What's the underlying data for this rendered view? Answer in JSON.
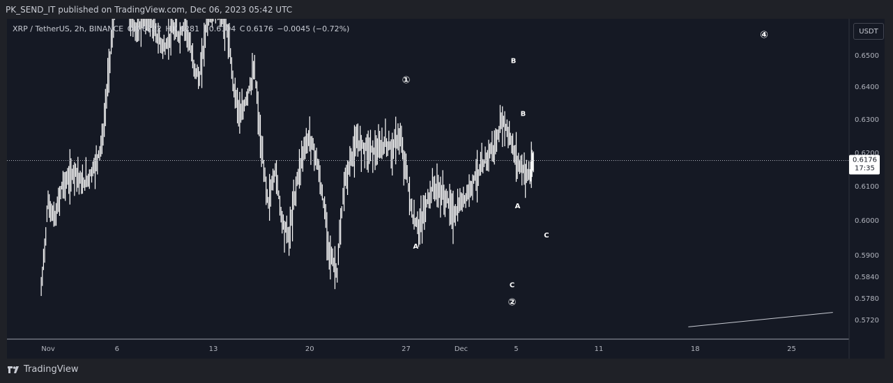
{
  "header": {
    "published_text": "PK_SEND_IT published on TradingView.com, Dec 06, 2023 05:42 UTC"
  },
  "symbol": {
    "name": "XRP / TetherUS, 2h, BINANCE",
    "open_label": "O",
    "open": "0.6222",
    "high_label": "H",
    "high": "0.6281",
    "low_label": "L",
    "low": "0.6104",
    "close_label": "C",
    "close": "0.6176",
    "change": "−0.0045 (−0.72%)"
  },
  "currency_button": "USDT",
  "price_marker": {
    "value": "0.6176",
    "countdown": "17:35"
  },
  "footer": {
    "brand": "TradingView"
  },
  "colors": {
    "background": "#151924",
    "candle": "#ffffff",
    "text": "#d1d4dc",
    "grid": "#2a2e39"
  },
  "chart_data": {
    "type": "line",
    "title": "XRP / TetherUS, 2h, BINANCE",
    "ylabel": "",
    "xlabel": "",
    "y_axis_ticks": [
      0.65,
      0.64,
      0.63,
      0.62,
      0.61,
      0.6,
      0.59,
      0.584,
      0.578,
      0.572
    ],
    "y_axis_tick_labels": [
      "0.6500",
      "0.6400",
      "0.6300",
      "0.6200",
      "0.6100",
      "0.6000",
      "0.5900",
      "0.5840",
      "0.5780",
      "0.5720"
    ],
    "x_axis_ticks": [
      {
        "day": 1,
        "label": "Nov"
      },
      {
        "day": 6,
        "label": "6"
      },
      {
        "day": 13,
        "label": "13"
      },
      {
        "day": 20,
        "label": "20"
      },
      {
        "day": 27,
        "label": "27"
      },
      {
        "day": 31,
        "label": "Dec"
      },
      {
        "day": 35,
        "label": "5"
      },
      {
        "day": 41,
        "label": "11"
      },
      {
        "day": 48,
        "label": "18"
      },
      {
        "day": 55,
        "label": "25"
      }
    ],
    "series": [
      {
        "x_day": [
          0.5,
          1.0,
          1.5,
          2.0,
          2.5,
          3.0,
          3.5,
          4.0,
          4.5,
          5.0,
          5.5,
          6.0,
          6.5,
          7.0,
          7.5,
          8.0,
          8.5,
          9.0,
          9.5,
          10.0,
          10.5,
          11.0,
          11.5,
          12.0,
          12.5,
          13.0,
          13.5,
          14.0,
          14.5,
          15.0,
          15.5,
          16.0,
          16.5,
          17.0,
          17.5,
          18.0,
          18.5,
          19.0,
          19.5,
          20.0,
          20.5,
          21.0,
          21.5,
          22.0,
          22.5,
          23.0,
          23.5,
          24.0,
          24.5,
          25.0,
          25.5,
          26.0,
          26.5,
          27.0,
          27.5,
          28.0,
          28.5,
          29.0,
          29.5,
          30.0,
          30.5,
          31.0,
          31.5,
          32.0,
          32.5,
          33.0,
          33.5,
          34.0,
          34.5,
          35.0,
          35.5,
          36.0,
          36.3
        ],
        "y": [
          0.58,
          0.605,
          0.6,
          0.61,
          0.612,
          0.615,
          0.61,
          0.613,
          0.617,
          0.625,
          0.65,
          0.67,
          0.675,
          0.66,
          0.658,
          0.662,
          0.66,
          0.655,
          0.652,
          0.658,
          0.656,
          0.66,
          0.648,
          0.642,
          0.66,
          0.664,
          0.662,
          0.658,
          0.64,
          0.63,
          0.638,
          0.645,
          0.62,
          0.605,
          0.615,
          0.6,
          0.595,
          0.61,
          0.62,
          0.625,
          0.618,
          0.605,
          0.59,
          0.585,
          0.61,
          0.618,
          0.623,
          0.622,
          0.621,
          0.62,
          0.623,
          0.621,
          0.625,
          0.615,
          0.6,
          0.598,
          0.605,
          0.61,
          0.608,
          0.606,
          0.601,
          0.605,
          0.608,
          0.613,
          0.615,
          0.62,
          0.622,
          0.63,
          0.625,
          0.618,
          0.615,
          0.613,
          0.6176
        ]
      }
    ],
    "current_price": 0.6176,
    "annotations": [
      {
        "label": "④",
        "day": 53.0,
        "y": 0.6555
      },
      {
        "label": "①",
        "day": 27.0,
        "y": 0.641
      },
      {
        "label": "A",
        "day": 27.7,
        "y": 0.5918
      },
      {
        "label": "B",
        "day": 34.8,
        "y": 0.6475
      },
      {
        "label": "B",
        "day": 35.5,
        "y": 0.631
      },
      {
        "label": "A",
        "day": 35.1,
        "y": 0.6035
      },
      {
        "label": "C",
        "day": 37.2,
        "y": 0.595
      },
      {
        "label": "C",
        "day": 34.7,
        "y": 0.581
      },
      {
        "label": "②",
        "day": 34.7,
        "y": 0.576
      }
    ],
    "trendline": {
      "from_day": 47.5,
      "from_y": 0.57,
      "to_day": 58.0,
      "to_y": 0.574
    }
  }
}
